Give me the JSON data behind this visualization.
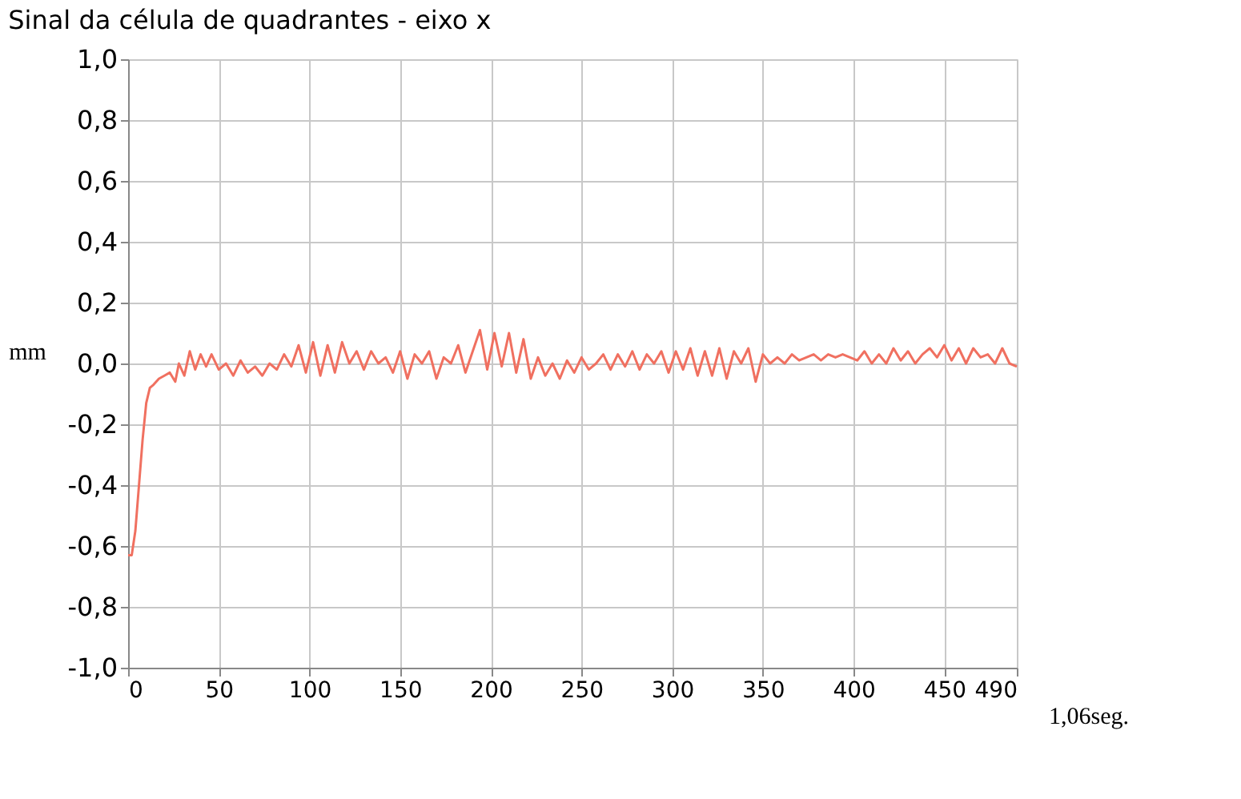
{
  "chart_data": {
    "type": "line",
    "title": "Sinal da célula de quadrantes - eixo x",
    "ylabel": "mm",
    "annotations": [
      "1,06seg."
    ],
    "x": [
      0,
      2,
      4,
      6,
      8,
      10,
      12,
      14,
      17,
      20,
      23,
      26,
      28,
      31,
      34,
      37,
      40,
      43,
      46,
      50,
      54,
      58,
      62,
      66,
      70,
      74,
      78,
      82,
      86,
      90,
      94,
      98,
      102,
      106,
      110,
      114,
      118,
      122,
      126,
      130,
      134,
      138,
      142,
      146,
      150,
      154,
      158,
      162,
      166,
      170,
      174,
      178,
      182,
      186,
      190,
      194,
      198,
      202,
      206,
      210,
      214,
      218,
      222,
      226,
      230,
      234,
      238,
      242,
      246,
      250,
      254,
      258,
      262,
      266,
      270,
      274,
      278,
      282,
      286,
      290,
      294,
      298,
      302,
      306,
      310,
      314,
      318,
      322,
      326,
      330,
      334,
      338,
      342,
      346,
      350,
      354,
      358,
      362,
      366,
      370,
      374,
      378,
      382,
      386,
      390,
      394,
      398,
      402,
      406,
      410,
      414,
      418,
      422,
      426,
      430,
      434,
      438,
      442,
      446,
      450,
      454,
      458,
      462,
      466,
      470,
      474,
      478,
      482,
      486,
      490
    ],
    "series": [
      {
        "color": "#f07060",
        "values": [
          -0.63,
          -0.63,
          -0.55,
          -0.4,
          -0.25,
          -0.13,
          -0.08,
          -0.07,
          -0.05,
          -0.04,
          -0.03,
          -0.06,
          0.0,
          -0.04,
          0.04,
          -0.02,
          0.03,
          -0.01,
          0.03,
          -0.02,
          0.0,
          -0.04,
          0.01,
          -0.03,
          -0.01,
          -0.04,
          0.0,
          -0.02,
          0.03,
          -0.01,
          0.06,
          -0.03,
          0.07,
          -0.04,
          0.06,
          -0.03,
          0.07,
          0.0,
          0.04,
          -0.02,
          0.04,
          0.0,
          0.02,
          -0.03,
          0.04,
          -0.05,
          0.03,
          0.0,
          0.04,
          -0.05,
          0.02,
          0.0,
          0.06,
          -0.03,
          0.04,
          0.11,
          -0.02,
          0.1,
          -0.01,
          0.1,
          -0.03,
          0.08,
          -0.05,
          0.02,
          -0.04,
          0.0,
          -0.05,
          0.01,
          -0.03,
          0.02,
          -0.02,
          0.0,
          0.03,
          -0.02,
          0.03,
          -0.01,
          0.04,
          -0.02,
          0.03,
          0.0,
          0.04,
          -0.03,
          0.04,
          -0.02,
          0.05,
          -0.04,
          0.04,
          -0.04,
          0.05,
          -0.05,
          0.04,
          0.0,
          0.05,
          -0.06,
          0.03,
          0.0,
          0.02,
          0.0,
          0.03,
          0.01,
          0.02,
          0.03,
          0.01,
          0.03,
          0.02,
          0.03,
          0.02,
          0.01,
          0.04,
          0.0,
          0.03,
          0.0,
          0.05,
          0.01,
          0.04,
          0.0,
          0.03,
          0.05,
          0.02,
          0.06,
          0.01,
          0.05,
          0.0,
          0.05,
          0.02,
          0.03,
          0.0,
          0.05,
          0.0,
          -0.01
        ]
      }
    ],
    "xlim": [
      0,
      490
    ],
    "xticks": [
      0,
      50,
      100,
      150,
      200,
      250,
      300,
      350,
      400,
      450,
      490
    ],
    "ylim": [
      -1.0,
      1.0
    ],
    "yticks": [
      {
        "value": -1.0,
        "label": "-1,0"
      },
      {
        "value": -0.8,
        "label": "-0,8"
      },
      {
        "value": -0.6,
        "label": "-0,6"
      },
      {
        "value": -0.4,
        "label": "-0,4"
      },
      {
        "value": -0.2,
        "label": "-0,2"
      },
      {
        "value": 0.0,
        "label": "0,0"
      },
      {
        "value": 0.2,
        "label": "0,2"
      },
      {
        "value": 0.4,
        "label": "0,4"
      },
      {
        "value": 0.6,
        "label": "0,6"
      },
      {
        "value": 0.8,
        "label": "0,8"
      },
      {
        "value": 1.0,
        "label": "1,0"
      }
    ],
    "grid": true,
    "marker": "none",
    "line_style": "solid"
  }
}
